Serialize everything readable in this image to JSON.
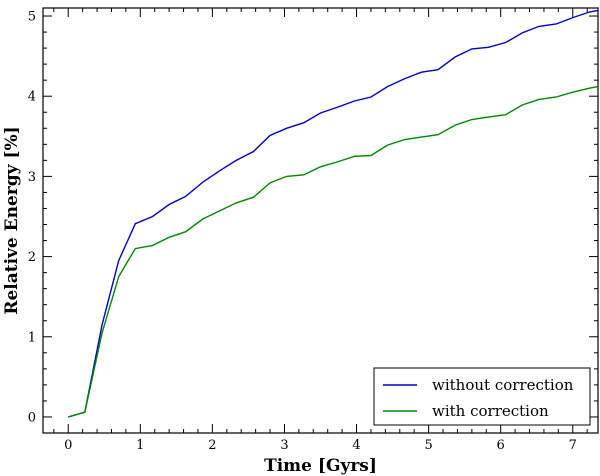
{
  "chart_data": {
    "type": "line",
    "title": "",
    "xlabel": "Time [Gyrs]",
    "ylabel": "Relative Energy [%]",
    "xlim": [
      -0.35,
      7.35
    ],
    "ylim": [
      -0.2,
      5.1
    ],
    "xticks": [
      0,
      1,
      2,
      3,
      4,
      5,
      6,
      7
    ],
    "yticks": [
      0,
      1,
      2,
      3,
      4,
      5
    ],
    "xtick_labels": [
      "0",
      "1",
      "2",
      "3",
      "4",
      "5",
      "6",
      "7"
    ],
    "ytick_labels": [
      "0",
      "1",
      "2",
      "3",
      "4",
      "5"
    ],
    "grid": false,
    "legend_position": "bottom-right",
    "x": [
      0,
      0.23,
      0.47,
      0.7,
      0.93,
      1.17,
      1.4,
      1.63,
      1.87,
      2.1,
      2.33,
      2.57,
      2.8,
      3.03,
      3.27,
      3.5,
      3.73,
      3.97,
      4.2,
      4.43,
      4.67,
      4.9,
      5.13,
      5.37,
      5.6,
      5.83,
      6.07,
      6.3,
      6.53,
      6.77,
      7.0,
      7.23,
      7.35
    ],
    "series": [
      {
        "name": "without correction",
        "color": "#0000cc",
        "values": [
          0,
          0.06,
          1.15,
          1.95,
          2.41,
          2.5,
          2.65,
          2.75,
          2.93,
          3.07,
          3.2,
          3.31,
          3.51,
          3.6,
          3.67,
          3.79,
          3.86,
          3.94,
          3.99,
          4.12,
          4.22,
          4.3,
          4.33,
          4.49,
          4.59,
          4.61,
          4.67,
          4.79,
          4.87,
          4.9,
          4.98,
          5.05,
          5.07
        ]
      },
      {
        "name": "with correction",
        "color": "#008800",
        "values": [
          0,
          0.06,
          1.05,
          1.75,
          2.1,
          2.14,
          2.24,
          2.31,
          2.47,
          2.57,
          2.67,
          2.74,
          2.92,
          3.0,
          3.02,
          3.12,
          3.18,
          3.25,
          3.26,
          3.39,
          3.46,
          3.49,
          3.52,
          3.64,
          3.71,
          3.74,
          3.77,
          3.89,
          3.96,
          3.99,
          4.05,
          4.1,
          4.12
        ]
      }
    ]
  }
}
